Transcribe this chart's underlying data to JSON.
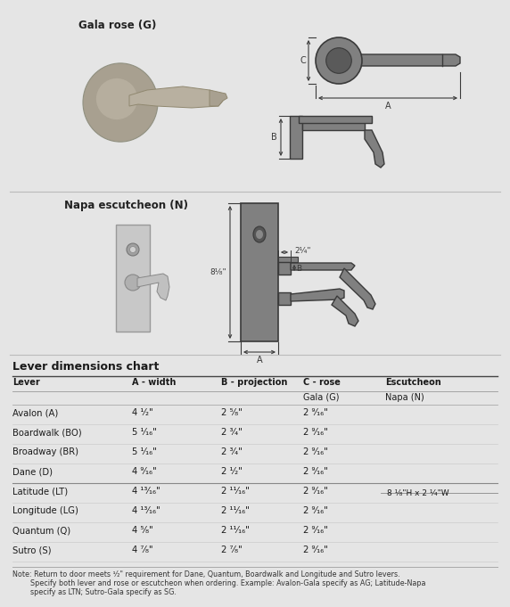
{
  "bg_color": "#e5e5e5",
  "diagram_fill": "#808080",
  "diagram_edge": "#444444",
  "diagram_dark": "#3a3a3a",
  "title_section1": "Gala rose (G)",
  "title_section2": "Napa escutcheon (N)",
  "table_title": "Lever dimensions chart",
  "col_headers": [
    "Lever",
    "A - width",
    "B - projection",
    "C - rose",
    "Escutcheon"
  ],
  "sub_headers_col3": "Gala (G)",
  "sub_headers_col4": "Napa (N)",
  "rows": [
    [
      "Avalon (A)",
      "4 ¹⁄₂\"",
      "2 ⁵⁄₈\"",
      "2 ⁹⁄₁₆\""
    ],
    [
      "Boardwalk (BO)",
      "5 ¹⁄₁₆\"",
      "2 ³⁄₄\"",
      "2 ⁹⁄₁₆\""
    ],
    [
      "Broadway (BR)",
      "5 ¹⁄₁₆\"",
      "2 ³⁄₄\"",
      "2 ⁹⁄₁₆\""
    ],
    [
      "Dane (D)",
      "4 ⁹⁄₁₆\"",
      "2 ¹⁄₂\"",
      "2 ⁹⁄₁₆\""
    ],
    [
      "Latitude (LT)",
      "4 ¹³⁄₁₆\"",
      "2 ¹¹⁄₁₆\"",
      "2 ⁹⁄₁₆\""
    ],
    [
      "Longitude (LG)",
      "4 ¹³⁄₁₆\"",
      "2 ¹¹⁄₁₆\"",
      "2 ⁹⁄₁₆\""
    ],
    [
      "Quantum (Q)",
      "4 ⁵⁄₈\"",
      "2 ¹¹⁄₁₆\"",
      "2 ⁹⁄₁₆\""
    ],
    [
      "Sutro (S)",
      "4 ⁷⁄₈\"",
      "2 ⁷⁄₈\"",
      "2 ⁹⁄₁₆\""
    ]
  ],
  "escutcheon_note": "8 ¹⁄₈\"H x 2 ¹⁄₄\"W",
  "escutcheon_note_row": 3,
  "note_line1": "Note: Return to door meets ¹⁄₂\" requirement for Dane, Quantum, Boardwalk and Longitude and Sutro levers.",
  "note_line2": "        Specify both lever and rose or escutcheon when ordering. Example: Avalon-Gala specify as AG; Latitude-Napa",
  "note_line3": "        specify as LTN; Sutro-Gala specify as SG.",
  "napa_dim_top": "2¹⁄₄\"",
  "napa_dim_left": "8¹⁄₈\"",
  "photo_gala_color": "#b8b0a0",
  "photo_gala_rose_color": "#a8a090",
  "photo_napa_bg": "#d0d0d0",
  "photo_napa_plate": "#c0c0c0"
}
